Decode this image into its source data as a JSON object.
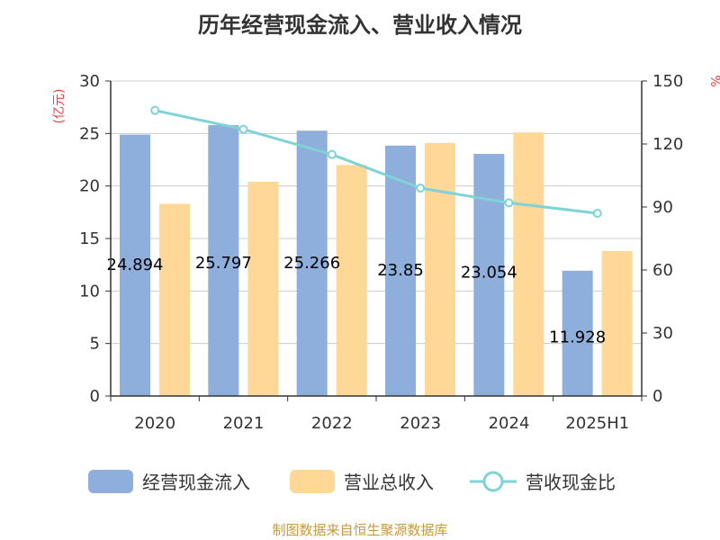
{
  "chart_data": {
    "type": "bar",
    "title": "历年经营现金流入、营业收入情况",
    "categories": [
      "2020",
      "2021",
      "2022",
      "2023",
      "2024",
      "2025H1"
    ],
    "y_left_label": "(亿元)",
    "y_right_label": "%",
    "ylim_left": [
      0,
      30
    ],
    "ylim_right": [
      0,
      150
    ],
    "y_left_ticks": [
      0,
      5,
      10,
      15,
      20,
      25,
      30
    ],
    "y_right_ticks": [
      0,
      30,
      60,
      90,
      120,
      150
    ],
    "grid": true,
    "legend_position": "bottom",
    "series": [
      {
        "name": "经营现金流入",
        "type": "bar",
        "axis": "left",
        "color": "#8eaedb",
        "values": [
          24.894,
          25.797,
          25.266,
          23.85,
          23.054,
          11.928
        ],
        "labels": [
          "24.894",
          "25.797",
          "25.266",
          "23.85",
          "23.054",
          "11.928"
        ]
      },
      {
        "name": "营业总收入",
        "type": "bar",
        "axis": "left",
        "color": "#ffd898",
        "values": [
          18.3,
          20.4,
          22.0,
          24.1,
          25.1,
          13.8
        ]
      },
      {
        "name": "营收现金比",
        "type": "line",
        "axis": "right",
        "color": "#7fd3d6",
        "values": [
          136,
          127,
          115,
          99,
          92,
          87
        ]
      }
    ]
  },
  "source": "制图数据来自恒生聚源数据库"
}
